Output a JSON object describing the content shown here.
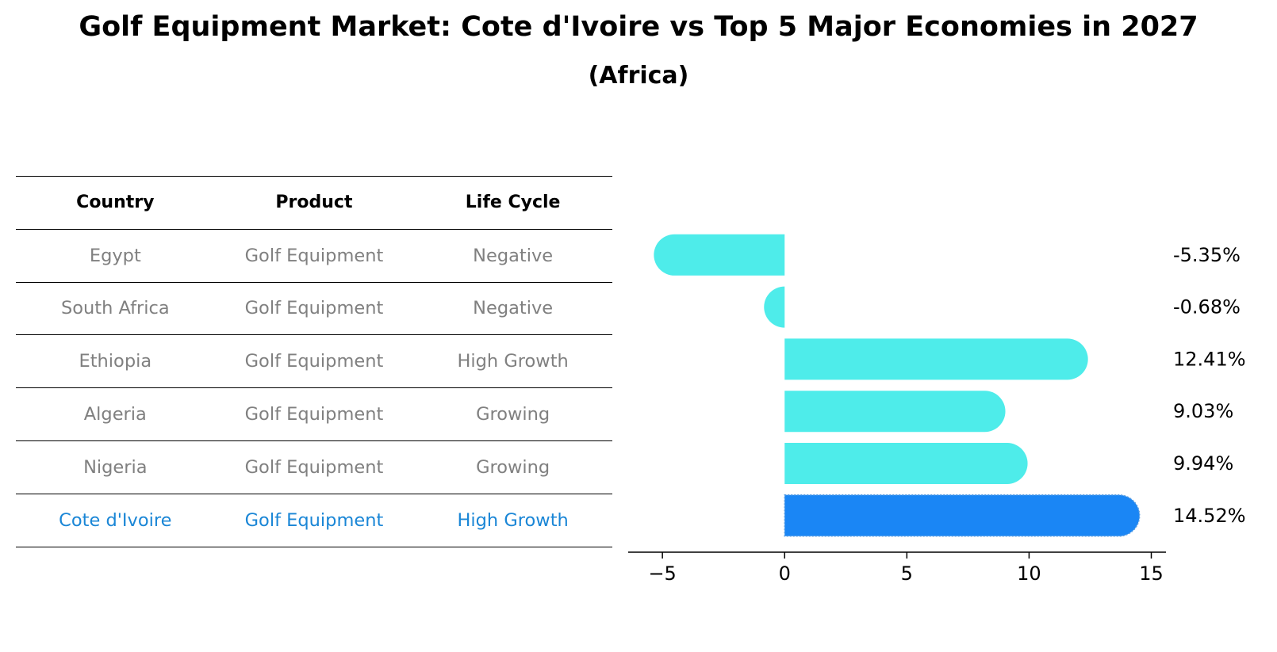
{
  "title": "Golf Equipment Market: Cote d'Ivoire vs Top 5 Major Economies in 2027",
  "subtitle": "(Africa)",
  "table": {
    "headers": [
      "Country",
      "Product",
      "Life Cycle"
    ],
    "rows": [
      {
        "country": "Egypt",
        "product": "Golf Equipment",
        "life_cycle": "Negative"
      },
      {
        "country": "South Africa",
        "product": "Golf Equipment",
        "life_cycle": "Negative"
      },
      {
        "country": "Ethiopia",
        "product": "Golf Equipment",
        "life_cycle": "High Growth"
      },
      {
        "country": "Algeria",
        "product": "Golf Equipment",
        "life_cycle": "Growing"
      },
      {
        "country": "Nigeria",
        "product": "Golf Equipment",
        "life_cycle": "Growing"
      },
      {
        "country": "Cote d'Ivoire",
        "product": "Golf Equipment",
        "life_cycle": "High Growth"
      }
    ]
  },
  "chart_data": {
    "type": "bar",
    "orientation": "horizontal",
    "title": "Golf Equipment Market: Cote d'Ivoire vs Top 5 Major Economies in 2027",
    "subtitle": "(Africa)",
    "categories": [
      "Egypt",
      "South Africa",
      "Ethiopia",
      "Algeria",
      "Nigeria",
      "Cote d'Ivoire"
    ],
    "values": [
      -5.35,
      -0.68,
      12.41,
      9.03,
      9.94,
      14.52
    ],
    "value_labels": [
      "-5.35%",
      "-0.68%",
      "12.41%",
      "9.03%",
      "9.94%",
      "14.52%"
    ],
    "highlight": "Cote d'Ivoire",
    "xlim": [
      -6.4,
      15.6
    ],
    "xticks": [
      -5,
      0,
      5,
      10,
      15
    ],
    "xtick_labels": [
      "−5",
      "0",
      "5",
      "10",
      "15"
    ],
    "xlabel": "",
    "ylabel": "",
    "grid": false,
    "colors": {
      "default": "#4eecea",
      "highlight": "#1a86f5",
      "highlight_text": "#1a86d6",
      "row_text": "#808080"
    }
  }
}
